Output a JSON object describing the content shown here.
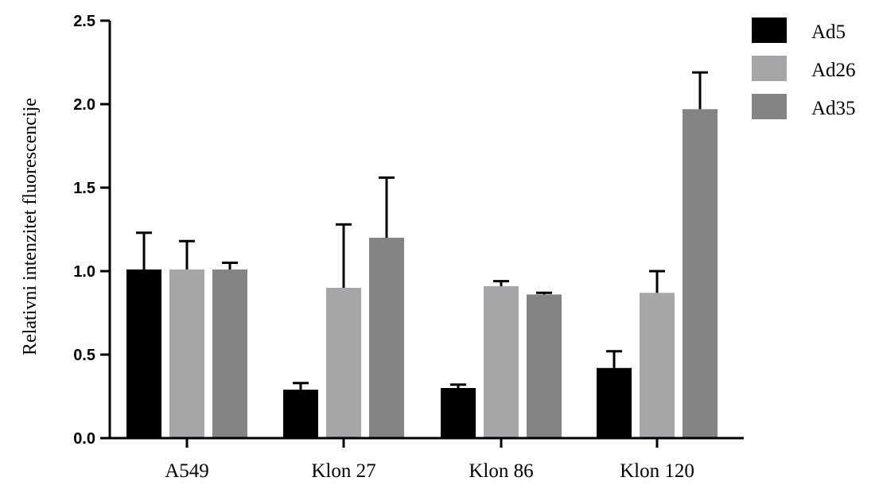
{
  "chart_data": {
    "type": "bar",
    "title": "",
    "xlabel": "",
    "ylabel": "Relativni intenzitet fluorescencije",
    "ylim": [
      0,
      2.5
    ],
    "yticks": [
      "0.0",
      "0.5",
      "1.0",
      "1.5",
      "2.0",
      "2.5"
    ],
    "categories": [
      "A549",
      "Klon 27",
      "Klon 86",
      "Klon 120"
    ],
    "series": [
      {
        "name": "Ad5",
        "color": "#000000",
        "values": [
          1.01,
          0.29,
          0.3,
          0.42
        ],
        "errors": [
          0.22,
          0.04,
          0.02,
          0.1
        ]
      },
      {
        "name": "Ad26",
        "color": "#a6a6a8",
        "values": [
          1.01,
          0.9,
          0.91,
          0.87
        ],
        "errors": [
          0.17,
          0.38,
          0.03,
          0.13
        ]
      },
      {
        "name": "Ad35",
        "color": "#848484",
        "values": [
          1.01,
          1.2,
          0.86,
          1.97
        ],
        "errors": [
          0.04,
          0.36,
          0.01,
          0.22
        ]
      }
    ],
    "legend_position": "top-right",
    "grid": false
  }
}
